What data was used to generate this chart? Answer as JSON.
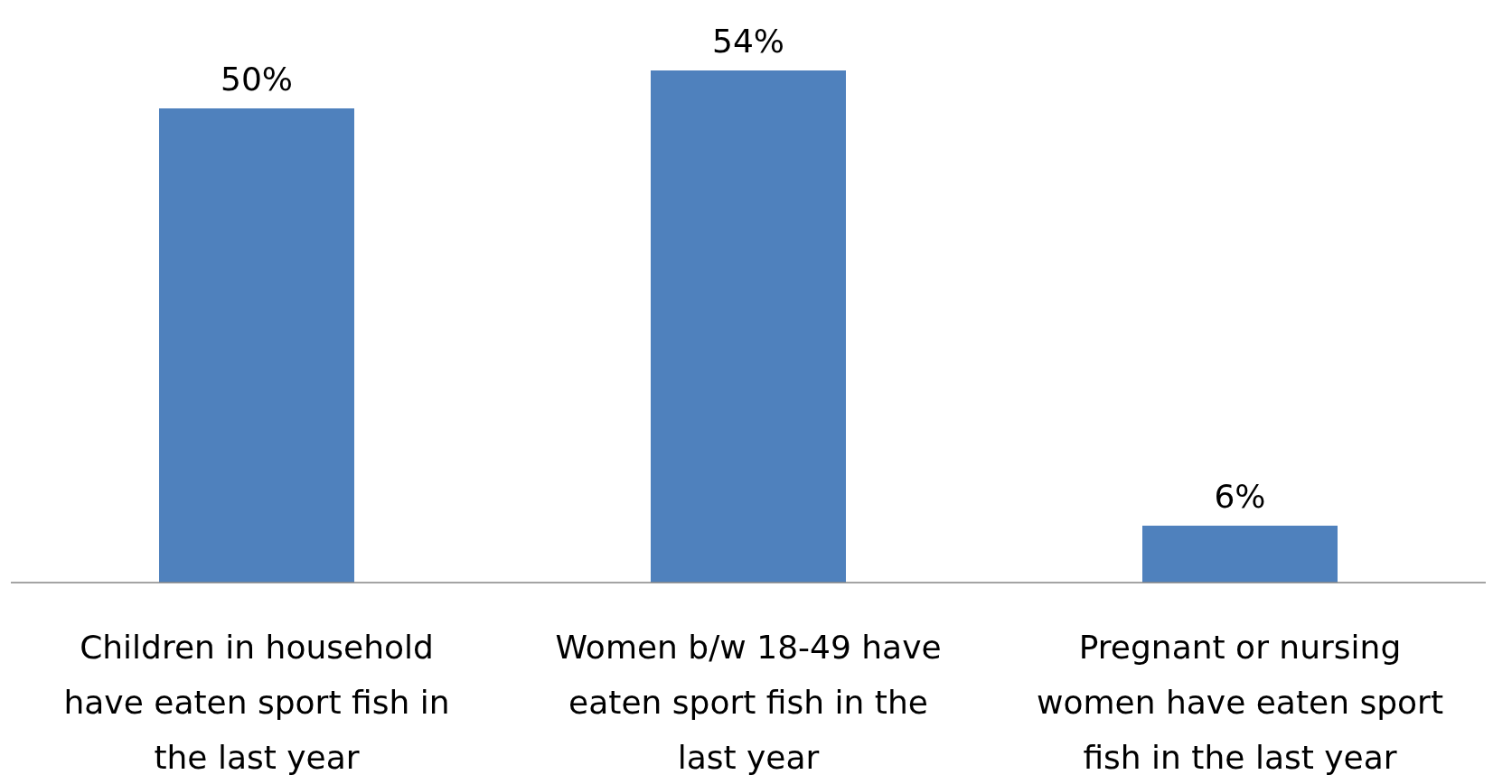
{
  "chart_data": {
    "type": "bar",
    "categories": [
      "Children in household have eaten sport fish in the last year",
      "Women b/w 18-49 have eaten sport fish in the last year",
      "Pregnant or nursing women have eaten sport fish in the last year"
    ],
    "values": [
      50,
      54,
      6
    ],
    "color": "#4f81bd",
    "value_labels": [
      "50%",
      "54%",
      "6%"
    ]
  }
}
